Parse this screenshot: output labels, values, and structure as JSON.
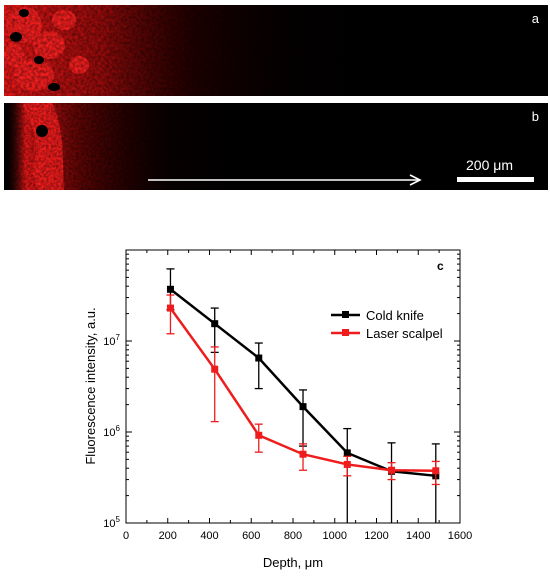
{
  "images": {
    "panel_a": {
      "label": "a"
    },
    "panel_b": {
      "label": "b"
    },
    "scale_bar": {
      "label": "200 μm"
    }
  },
  "colors": {
    "fluorescence": "#ff1a1a",
    "cold_knife": "#000000",
    "laser_scalpel": "#ee1c1c"
  },
  "chart_data": {
    "type": "line",
    "panel_label": "c",
    "xlabel": "Depth, μm",
    "ylabel": "Fluorescence intensity, a.u.",
    "xlim": [
      0,
      1600
    ],
    "ylim": [
      100000,
      100000000
    ],
    "yscale": "log",
    "x_ticks": [
      0,
      200,
      400,
      600,
      800,
      1000,
      1200,
      1400,
      1600
    ],
    "y_ticks": [
      {
        "value": 100000,
        "base": "10",
        "exp": "5"
      },
      {
        "value": 1000000,
        "base": "10",
        "exp": "6"
      },
      {
        "value": 10000000,
        "base": "10",
        "exp": "7"
      }
    ],
    "legend_position": "top-right",
    "series": [
      {
        "name": "Cold knife",
        "x": [
          213,
          425,
          636,
          848,
          1060,
          1272,
          1484
        ],
        "y": [
          37000000,
          15500000,
          6500000,
          1900000,
          590000,
          370000,
          330000
        ],
        "err": [
          [
            15000000,
            25000000
          ],
          [
            8000000,
            7500000
          ],
          [
            3500000,
            3000000
          ],
          [
            1200000,
            1000000
          ],
          [
            590000,
            500000
          ],
          [
            370000,
            390000
          ],
          [
            330000,
            410000
          ]
        ]
      },
      {
        "name": "Laser scalpel",
        "x": [
          213,
          425,
          636,
          848,
          1060,
          1272,
          1484
        ],
        "y": [
          23000000,
          4900000,
          920000,
          570000,
          440000,
          380000,
          375000
        ],
        "err": [
          [
            11000000,
            9000000
          ],
          [
            3600000,
            3700000
          ],
          [
            320000,
            300000
          ],
          [
            190000,
            170000
          ],
          [
            110000,
            100000
          ],
          [
            80000,
            80000
          ],
          [
            110000,
            100000
          ]
        ]
      }
    ]
  }
}
